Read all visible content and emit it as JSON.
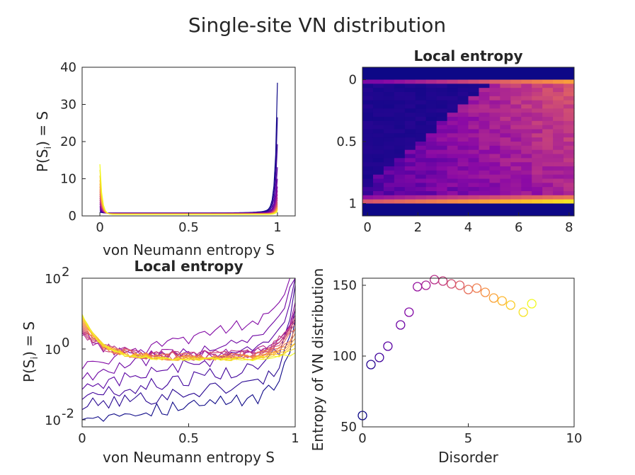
{
  "figure": {
    "title": "Single-site VN distribution"
  },
  "chart_data": [
    {
      "type": "line",
      "title": "",
      "xlabel": "von Neumann entropy S",
      "ylabel_base": "P(S",
      "ylabel_sub": "i",
      "ylabel_tail": ") = S",
      "xlim": [
        -0.1,
        1.1
      ],
      "ylim": [
        0,
        40
      ],
      "xticks": [
        0,
        0.5,
        1
      ],
      "xtick_labels": [
        "0",
        "0.5",
        "1"
      ],
      "yticks": [
        0,
        10,
        20,
        30,
        40
      ],
      "ytick_labels": [
        "0",
        "10",
        "20",
        "30",
        "40"
      ],
      "disorder": [
        0,
        0.4,
        0.8,
        1.2,
        1.8,
        2.2,
        2.6,
        3.0,
        3.4,
        3.8,
        4.2,
        4.6,
        5.0,
        5.4,
        5.8,
        6.2,
        6.6,
        7.0,
        7.6,
        8.0
      ],
      "peak_at_1": [
        34,
        25,
        18,
        12,
        9,
        7,
        6,
        5,
        4.2,
        3.6,
        3.0,
        2.6,
        2.2,
        2.0,
        1.8,
        1.6,
        1.4,
        1.2,
        1.0,
        0.8
      ],
      "peak_at_0": [
        0.2,
        0.4,
        0.8,
        1.2,
        1.6,
        2.0,
        2.5,
        3.0,
        3.6,
        4.2,
        4.8,
        5.4,
        6.0,
        6.6,
        7.4,
        8.2,
        9.2,
        10.4,
        12,
        13.5
      ],
      "colormap": "plasma"
    },
    {
      "type": "heatmap",
      "title": "Local entropy",
      "xlim": [
        -0.2,
        8.2
      ],
      "ylim": [
        -0.1,
        1.1
      ],
      "y_reversed": true,
      "xticks": [
        0,
        2,
        4,
        6,
        8
      ],
      "xtick_labels": [
        "0",
        "2",
        "4",
        "6",
        "8"
      ],
      "yticks": [
        0,
        0.5,
        1
      ],
      "ytick_labels": [
        "0",
        "0.5",
        "1"
      ],
      "columns": 20,
      "rows": 30,
      "colormap": "plasma"
    },
    {
      "type": "line",
      "title": "Local entropy",
      "xlabel": "von Neumann entropy S",
      "ylabel_base": "P(S",
      "ylabel_sub": "i",
      "ylabel_tail": ") = S",
      "yscale": "log",
      "xlim": [
        0,
        1
      ],
      "ylim_exp": [
        -2.2,
        2
      ],
      "xticks": [
        0,
        0.5,
        1
      ],
      "xtick_labels": [
        "0",
        "0.5",
        "1"
      ],
      "ytick_exponents": [
        -2,
        0,
        2
      ],
      "ytick_base": "10",
      "ytick_exp_labels": [
        "-2",
        "0",
        "2"
      ],
      "colormap": "plasma"
    },
    {
      "type": "scatter",
      "title": "",
      "xlabel": "Disorder",
      "ylabel": "Entropy of VN distribution",
      "xlim": [
        0,
        10
      ],
      "ylim": [
        50,
        155
      ],
      "xticks": [
        0,
        5,
        10
      ],
      "xtick_labels": [
        "0",
        "5",
        "10"
      ],
      "yticks": [
        50,
        100,
        150
      ],
      "ytick_labels": [
        "50",
        "100",
        "150"
      ],
      "x": [
        0,
        0.4,
        0.8,
        1.2,
        1.8,
        2.2,
        2.6,
        3.0,
        3.4,
        3.8,
        4.2,
        4.6,
        5.0,
        5.4,
        5.8,
        6.2,
        6.6,
        7.0,
        7.6,
        8.0
      ],
      "y": [
        58,
        94,
        99,
        107,
        122,
        131,
        149,
        150,
        154,
        153,
        151,
        150,
        147,
        148,
        145,
        141,
        139,
        136,
        131,
        137
      ],
      "marker": "open-circle",
      "colormap": "plasma"
    }
  ]
}
